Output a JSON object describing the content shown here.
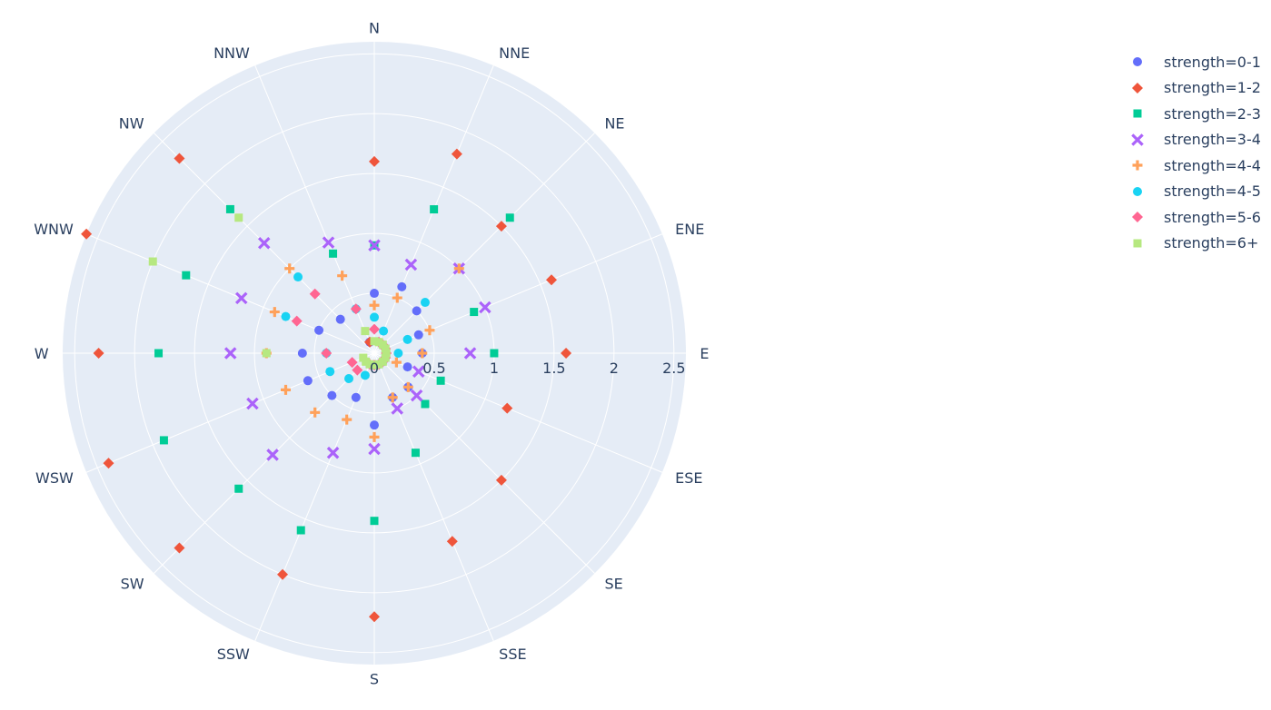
{
  "chart_data": {
    "type": "scatter-polar",
    "angular_axis": {
      "direction": "clockwise",
      "rotation": "north",
      "tick_labels": [
        "N",
        "NNE",
        "NE",
        "ENE",
        "E",
        "ESE",
        "SE",
        "SSE",
        "S",
        "SSW",
        "SW",
        "WSW",
        "W",
        "WNW",
        "NW",
        "NNW"
      ]
    },
    "radial_axis": {
      "range": [
        0,
        2.6
      ],
      "tick_labels": [
        "0",
        "0.5",
        "1",
        "1.5",
        "2",
        "2.5"
      ],
      "tick_values": [
        0,
        0.5,
        1,
        1.5,
        2,
        2.5
      ]
    },
    "legend_placement": "top-right",
    "series": [
      {
        "name": "strength=0-1",
        "color": "#636efa",
        "symbol": "circle",
        "points": [
          {
            "direction": "N",
            "r": 0.5
          },
          {
            "direction": "NNE",
            "r": 0.6
          },
          {
            "direction": "NE",
            "r": 0.5
          },
          {
            "direction": "ENE",
            "r": 0.4
          },
          {
            "direction": "E",
            "r": 0.4
          },
          {
            "direction": "ESE",
            "r": 0.3
          },
          {
            "direction": "SE",
            "r": 0.4
          },
          {
            "direction": "SSE",
            "r": 0.4
          },
          {
            "direction": "S",
            "r": 0.6
          },
          {
            "direction": "SSW",
            "r": 0.4
          },
          {
            "direction": "SW",
            "r": 0.5
          },
          {
            "direction": "WSW",
            "r": 0.6
          },
          {
            "direction": "W",
            "r": 0.6
          },
          {
            "direction": "WNW",
            "r": 0.5
          },
          {
            "direction": "NW",
            "r": 0.4
          },
          {
            "direction": "NNW",
            "r": 0.1
          }
        ]
      },
      {
        "name": "strength=1-2",
        "color": "#ef553b",
        "symbol": "diamond",
        "points": [
          {
            "direction": "N",
            "r": 1.6
          },
          {
            "direction": "NNE",
            "r": 1.8
          },
          {
            "direction": "NE",
            "r": 1.5
          },
          {
            "direction": "ENE",
            "r": 1.6
          },
          {
            "direction": "E",
            "r": 1.6
          },
          {
            "direction": "ESE",
            "r": 1.2
          },
          {
            "direction": "SE",
            "r": 1.5
          },
          {
            "direction": "SSE",
            "r": 1.7
          },
          {
            "direction": "S",
            "r": 2.2
          },
          {
            "direction": "SSW",
            "r": 2.0
          },
          {
            "direction": "SW",
            "r": 2.3
          },
          {
            "direction": "WSW",
            "r": 2.4
          },
          {
            "direction": "W",
            "r": 2.3
          },
          {
            "direction": "WNW",
            "r": 2.6
          },
          {
            "direction": "NW",
            "r": 2.3
          },
          {
            "direction": "NNW",
            "r": 0.1
          }
        ]
      },
      {
        "name": "strength=2-3",
        "color": "#00cc96",
        "symbol": "square",
        "points": [
          {
            "direction": "N",
            "r": 0.9
          },
          {
            "direction": "NNE",
            "r": 1.3
          },
          {
            "direction": "NE",
            "r": 1.6
          },
          {
            "direction": "ENE",
            "r": 0.9
          },
          {
            "direction": "E",
            "r": 1.0
          },
          {
            "direction": "ESE",
            "r": 0.6
          },
          {
            "direction": "SE",
            "r": 0.6
          },
          {
            "direction": "SSE",
            "r": 0.9
          },
          {
            "direction": "S",
            "r": 1.4
          },
          {
            "direction": "SSW",
            "r": 1.6
          },
          {
            "direction": "SW",
            "r": 1.6
          },
          {
            "direction": "WSW",
            "r": 1.9
          },
          {
            "direction": "W",
            "r": 1.8
          },
          {
            "direction": "WNW",
            "r": 1.7
          },
          {
            "direction": "NW",
            "r": 1.7
          },
          {
            "direction": "NNW",
            "r": 0.9
          }
        ]
      },
      {
        "name": "strength=3-4",
        "color": "#ab63fa",
        "symbol": "x",
        "points": [
          {
            "direction": "N",
            "r": 0.9
          },
          {
            "direction": "NNE",
            "r": 0.8
          },
          {
            "direction": "NE",
            "r": 1.0
          },
          {
            "direction": "ENE",
            "r": 1.0
          },
          {
            "direction": "E",
            "r": 0.8
          },
          {
            "direction": "ESE",
            "r": 0.4
          },
          {
            "direction": "SE",
            "r": 0.5
          },
          {
            "direction": "SSE",
            "r": 0.5
          },
          {
            "direction": "S",
            "r": 0.8
          },
          {
            "direction": "SSW",
            "r": 0.9
          },
          {
            "direction": "SW",
            "r": 1.2
          },
          {
            "direction": "WSW",
            "r": 1.1
          },
          {
            "direction": "W",
            "r": 1.2
          },
          {
            "direction": "WNW",
            "r": 1.2
          },
          {
            "direction": "NW",
            "r": 1.3
          },
          {
            "direction": "NNW",
            "r": 1.0
          }
        ]
      },
      {
        "name": "strength=4-4",
        "color": "#ffa15a",
        "symbol": "cross",
        "points": [
          {
            "direction": "N",
            "r": 0.4
          },
          {
            "direction": "NNE",
            "r": 0.5
          },
          {
            "direction": "NE",
            "r": 1.0
          },
          {
            "direction": "ENE",
            "r": 0.5
          },
          {
            "direction": "E",
            "r": 0.4
          },
          {
            "direction": "ESE",
            "r": 0.2
          },
          {
            "direction": "SE",
            "r": 0.4
          },
          {
            "direction": "SSE",
            "r": 0.4
          },
          {
            "direction": "S",
            "r": 0.7
          },
          {
            "direction": "SSW",
            "r": 0.6
          },
          {
            "direction": "SW",
            "r": 0.7
          },
          {
            "direction": "WSW",
            "r": 0.8
          },
          {
            "direction": "W",
            "r": 0.9
          },
          {
            "direction": "WNW",
            "r": 0.9
          },
          {
            "direction": "NW",
            "r": 1.0
          },
          {
            "direction": "NNW",
            "r": 0.7
          }
        ]
      },
      {
        "name": "strength=4-5",
        "color": "#19d3f3",
        "symbol": "circle",
        "points": [
          {
            "direction": "N",
            "r": 0.3
          },
          {
            "direction": "NNE",
            "r": 0.2
          },
          {
            "direction": "NE",
            "r": 0.6
          },
          {
            "direction": "ENE",
            "r": 0.3
          },
          {
            "direction": "E",
            "r": 0.2
          },
          {
            "direction": "ESE",
            "r": 0.1
          },
          {
            "direction": "SE",
            "r": 0.1
          },
          {
            "direction": "SSE",
            "r": 0.1
          },
          {
            "direction": "S",
            "r": 0.1
          },
          {
            "direction": "SSW",
            "r": 0.2
          },
          {
            "direction": "SW",
            "r": 0.3
          },
          {
            "direction": "WSW",
            "r": 0.4
          },
          {
            "direction": "W",
            "r": 0.4
          },
          {
            "direction": "WNW",
            "r": 0.8
          },
          {
            "direction": "NW",
            "r": 0.9
          },
          {
            "direction": "NNW",
            "r": 0.4
          }
        ]
      },
      {
        "name": "strength=5-6",
        "color": "#ff6692",
        "symbol": "diamond",
        "points": [
          {
            "direction": "N",
            "r": 0.2
          },
          {
            "direction": "NNE",
            "r": 0.1
          },
          {
            "direction": "NE",
            "r": 0.1
          },
          {
            "direction": "ENE",
            "r": 0.1
          },
          {
            "direction": "E",
            "r": 0.1
          },
          {
            "direction": "ESE",
            "r": 0.1
          },
          {
            "direction": "SE",
            "r": 0.1
          },
          {
            "direction": "SSE",
            "r": 0.1
          },
          {
            "direction": "S",
            "r": 0.1
          },
          {
            "direction": "SSW",
            "r": 0.1
          },
          {
            "direction": "SW",
            "r": 0.2
          },
          {
            "direction": "WSW",
            "r": 0.2
          },
          {
            "direction": "W",
            "r": 0.4
          },
          {
            "direction": "WNW",
            "r": 0.7
          },
          {
            "direction": "NW",
            "r": 0.7
          },
          {
            "direction": "NNW",
            "r": 0.4
          }
        ]
      },
      {
        "name": "strength=6+",
        "color": "#b6e880",
        "symbol": "square",
        "points": [
          {
            "direction": "N",
            "r": 0.1
          },
          {
            "direction": "NNE",
            "r": 0.1
          },
          {
            "direction": "NE",
            "r": 0.1
          },
          {
            "direction": "ENE",
            "r": 0.1
          },
          {
            "direction": "E",
            "r": 0.1
          },
          {
            "direction": "ESE",
            "r": 0.1
          },
          {
            "direction": "SE",
            "r": 0.1
          },
          {
            "direction": "SSE",
            "r": 0.1
          },
          {
            "direction": "S",
            "r": 0.1
          },
          {
            "direction": "SSW",
            "r": 0.1
          },
          {
            "direction": "SW",
            "r": 0.1
          },
          {
            "direction": "WSW",
            "r": 0.1
          },
          {
            "direction": "W",
            "r": 0.9
          },
          {
            "direction": "WNW",
            "r": 2.0
          },
          {
            "direction": "NW",
            "r": 1.6
          },
          {
            "direction": "NNW",
            "r": 0.2
          }
        ]
      }
    ]
  }
}
